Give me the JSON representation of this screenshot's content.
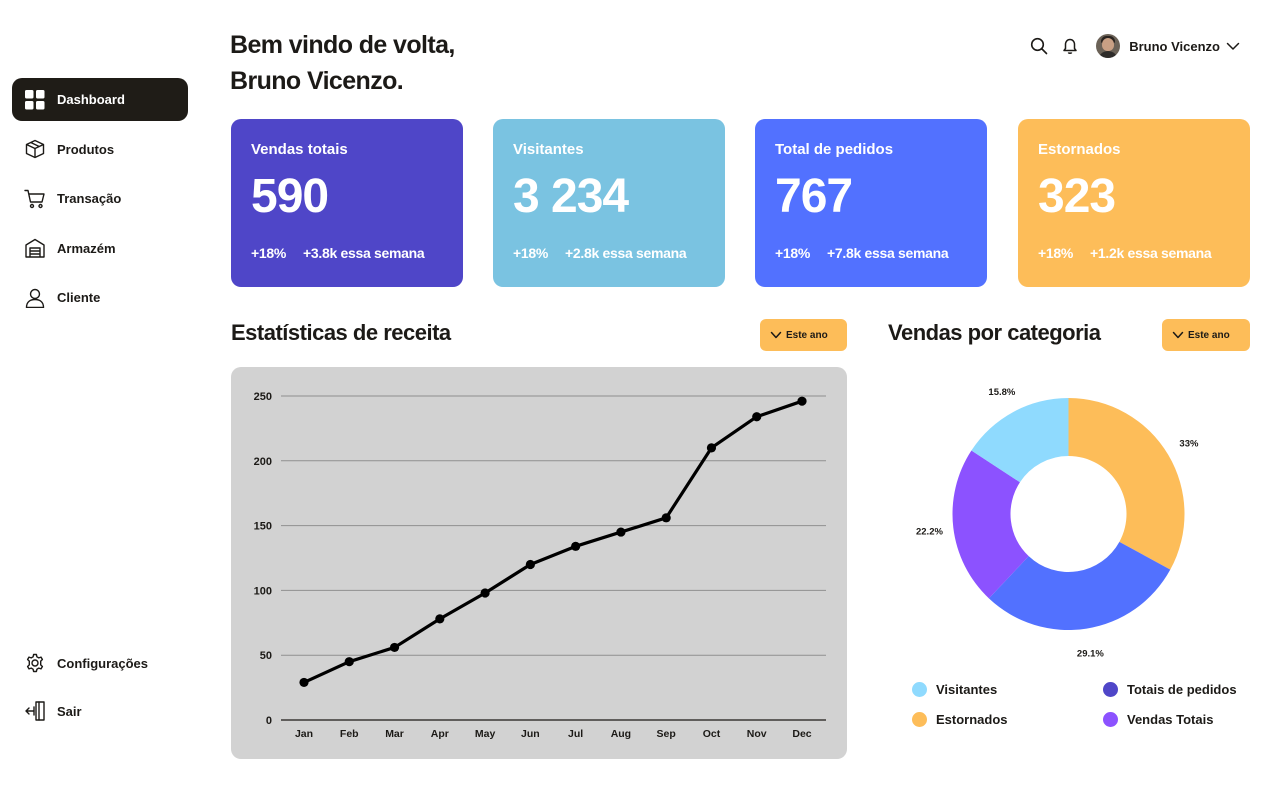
{
  "sidebar": {
    "items": [
      {
        "label": "Dashboard",
        "icon": "grid-icon"
      },
      {
        "label": "Produtos",
        "icon": "box-icon"
      },
      {
        "label": "Transação",
        "icon": "cart-icon"
      },
      {
        "label": "Armazém",
        "icon": "warehouse-icon"
      },
      {
        "label": "Cliente",
        "icon": "user-icon"
      }
    ],
    "bottom": [
      {
        "label": "Configurações",
        "icon": "gear-icon"
      },
      {
        "label": "Sair",
        "icon": "logout-icon"
      }
    ]
  },
  "header": {
    "greeting_line1": "Bem vindo de volta,",
    "greeting_line2": "Bruno Vicenzo.",
    "user_name": "Bruno Vicenzo"
  },
  "cards": [
    {
      "label": "Vendas totais",
      "value": "590",
      "change": "+18%",
      "week": "+3.8k essa semana",
      "color": "#4f46c8"
    },
    {
      "label": "Visitantes",
      "value": "3 234",
      "change": "+18%",
      "week": "+2.8k essa semana",
      "color": "#7ac3e1"
    },
    {
      "label": "Total de pedidos",
      "value": "767",
      "change": "+18%",
      "week": "+7.8k essa semana",
      "color": "#5271ff"
    },
    {
      "label": "Estornados",
      "value": "323",
      "change": "+18%",
      "week": "+1.2k essa semana",
      "color": "#fdbd59"
    }
  ],
  "revenue": {
    "title": "Estatísticas de receita",
    "filter_label": "Este ano"
  },
  "category": {
    "title": "Vendas por categoria",
    "filter_label": "Este ano",
    "legend": [
      {
        "label": "Visitantes",
        "color": "#8fdafe"
      },
      {
        "label": "Totais de pedidos",
        "color": "#4f46c8"
      },
      {
        "label": "Estornados",
        "color": "#fdbd59"
      },
      {
        "label": "Vendas Totais",
        "color": "#8c52ff"
      }
    ]
  },
  "chart_data": [
    {
      "type": "line",
      "categories": [
        "Jan",
        "Feb",
        "Mar",
        "Apr",
        "May",
        "Jun",
        "Jul",
        "Aug",
        "Sep",
        "Oct",
        "Nov",
        "Dec"
      ],
      "series": [
        {
          "values": [
            29,
            45,
            56,
            78,
            98,
            120,
            134,
            145,
            156,
            210,
            234,
            246
          ]
        }
      ],
      "yticks": [
        0,
        50,
        100,
        150,
        200,
        250
      ],
      "ylim": [
        0,
        250
      ],
      "grid": true,
      "line_color": "#000000"
    },
    {
      "type": "pie",
      "donut": true,
      "slices": [
        {
          "label": "33%",
          "value": 33,
          "color": "#fdbd59"
        },
        {
          "label": "29.1%",
          "value": 29.1,
          "color": "#5271ff"
        },
        {
          "label": "22.2%",
          "value": 22.2,
          "color": "#8c52ff"
        },
        {
          "label": "15.8%",
          "value": 15.8,
          "color": "#8fdafe"
        }
      ]
    }
  ]
}
